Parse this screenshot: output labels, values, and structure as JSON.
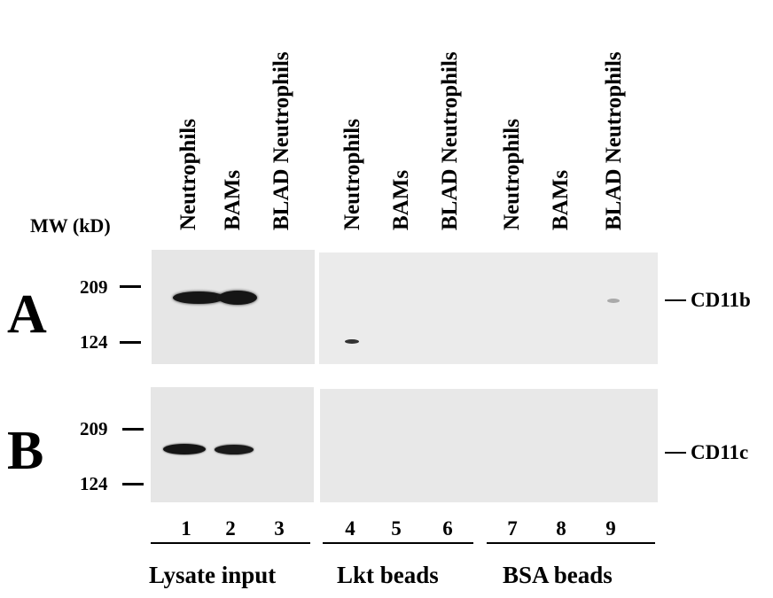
{
  "lane_headers": [
    "Neutrophils",
    "BAMs",
    "BLAD Neutrophils",
    "Neutrophils",
    "BAMs",
    "BLAD Neutrophils",
    "Neutrophils",
    "BAMs",
    "BLAD Neutrophils"
  ],
  "mw_axis_title": "MW (kD)",
  "panels": [
    {
      "letter": "A",
      "markers": [
        "209",
        "124"
      ],
      "protein": "CD11b"
    },
    {
      "letter": "B",
      "markers": [
        "209",
        "124"
      ],
      "protein": "CD11c"
    }
  ],
  "lane_numbers": [
    "1",
    "2",
    "3",
    "4",
    "5",
    "6",
    "7",
    "8",
    "9"
  ],
  "groups": [
    "Lysate input",
    "Lkt beads",
    "BSA beads"
  ],
  "colors": {
    "blot_background": "#e9e9e9",
    "band": "#111111"
  }
}
